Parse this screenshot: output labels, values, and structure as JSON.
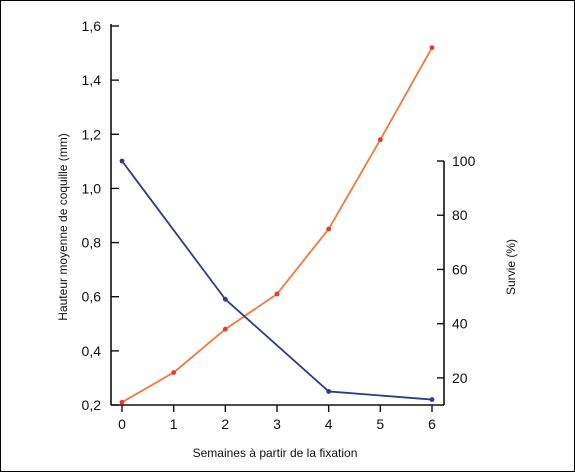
{
  "chart_data": {
    "type": "line",
    "x": [
      0,
      1,
      2,
      3,
      4,
      5,
      6
    ],
    "xlim": [
      0,
      6
    ],
    "xticks": [
      0,
      1,
      2,
      3,
      4,
      5,
      6
    ],
    "xtick_labels": [
      "0",
      "1",
      "2",
      "3",
      "4",
      "5",
      "6"
    ],
    "xlabel": "Semaines à partir de la fixation",
    "ylabel": "Hauteur moyenne de coquille (mm)",
    "ylim": [
      0.2,
      1.6
    ],
    "yticks": [
      0.2,
      0.4,
      0.6,
      0.8,
      1.0,
      1.2,
      1.4,
      1.6
    ],
    "ytick_labels": [
      "0,2",
      "0,4",
      "0,6",
      "0,8",
      "1,0",
      "1,2",
      "1,4",
      "1,6"
    ],
    "y2label": "Survie (%)",
    "y2lim": [
      10,
      100
    ],
    "y2ticks": [
      20,
      40,
      60,
      80,
      100
    ],
    "y2tick_labels": [
      "20",
      "40",
      "60",
      "80",
      "100"
    ],
    "grid": false,
    "series": [
      {
        "axis": "left",
        "color": "#f07a3a",
        "marker_color": "#e8392e",
        "x": [
          0,
          1,
          2,
          3,
          4,
          5,
          6
        ],
        "values": [
          0.21,
          0.32,
          0.48,
          0.61,
          0.85,
          1.18,
          1.52
        ]
      },
      {
        "axis": "right",
        "color": "#2e3a92",
        "marker_color": "#2e3a92",
        "x": [
          0,
          2,
          4,
          6
        ],
        "values": [
          100,
          49,
          15,
          12
        ]
      }
    ]
  }
}
